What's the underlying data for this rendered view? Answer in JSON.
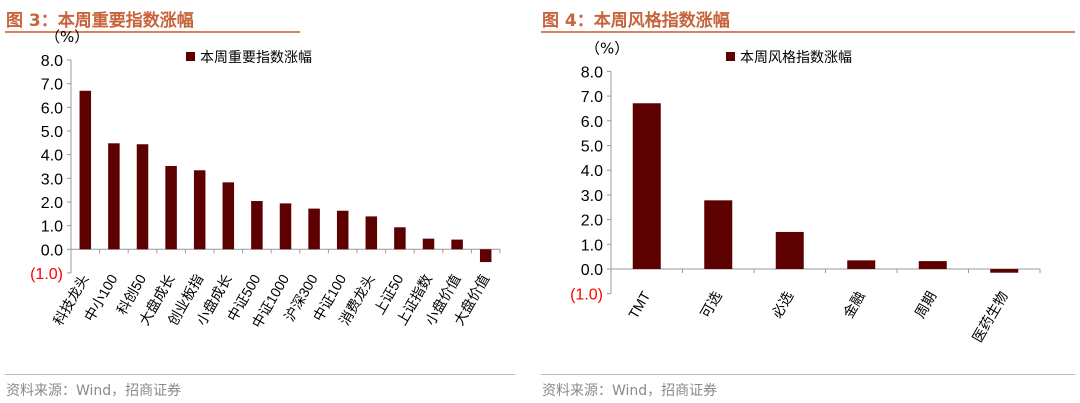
{
  "colors": {
    "bar": "#5c0000",
    "title": "#c8643c",
    "negative_tick": "#ff0000"
  },
  "chart_data": [
    {
      "type": "bar",
      "title": "图 3：本周重要指数涨幅",
      "ylabel": "（%）",
      "legend": "本周重要指数涨幅",
      "legend_position": "top",
      "ylim": [
        -1,
        8
      ],
      "grid": false,
      "yticks": [
        "8.0",
        "7.0",
        "6.0",
        "5.0",
        "4.0",
        "3.0",
        "2.0",
        "1.0",
        "0.0",
        "(1.0)"
      ],
      "categories": [
        "科技龙头",
        "中小100",
        "科创50",
        "大盘成长",
        "创业板指",
        "小盘成长",
        "中证500",
        "中证1000",
        "沪深300",
        "中证100",
        "消费龙头",
        "上证50",
        "上证指数",
        "小盘价值",
        "大盘价值"
      ],
      "values": [
        6.7,
        4.48,
        4.44,
        3.52,
        3.34,
        2.83,
        2.04,
        1.94,
        1.72,
        1.63,
        1.39,
        0.93,
        0.45,
        0.41,
        -0.54
      ],
      "source": "资料来源：Wind，招商证券"
    },
    {
      "type": "bar",
      "title": "图 4：本周风格指数涨幅",
      "ylabel": "（%）",
      "legend": "本周风格指数涨幅",
      "legend_position": "top",
      "ylim": [
        -1,
        8
      ],
      "grid": false,
      "yticks": [
        "8.0",
        "7.0",
        "6.0",
        "5.0",
        "4.0",
        "3.0",
        "2.0",
        "1.0",
        "0.0",
        "(1.0)"
      ],
      "categories": [
        "TMT",
        "可选",
        "必选",
        "金融",
        "周期",
        "医药生物"
      ],
      "values": [
        6.71,
        2.78,
        1.5,
        0.35,
        0.32,
        -0.15
      ],
      "source": "资料来源：Wind，招商证券"
    }
  ]
}
